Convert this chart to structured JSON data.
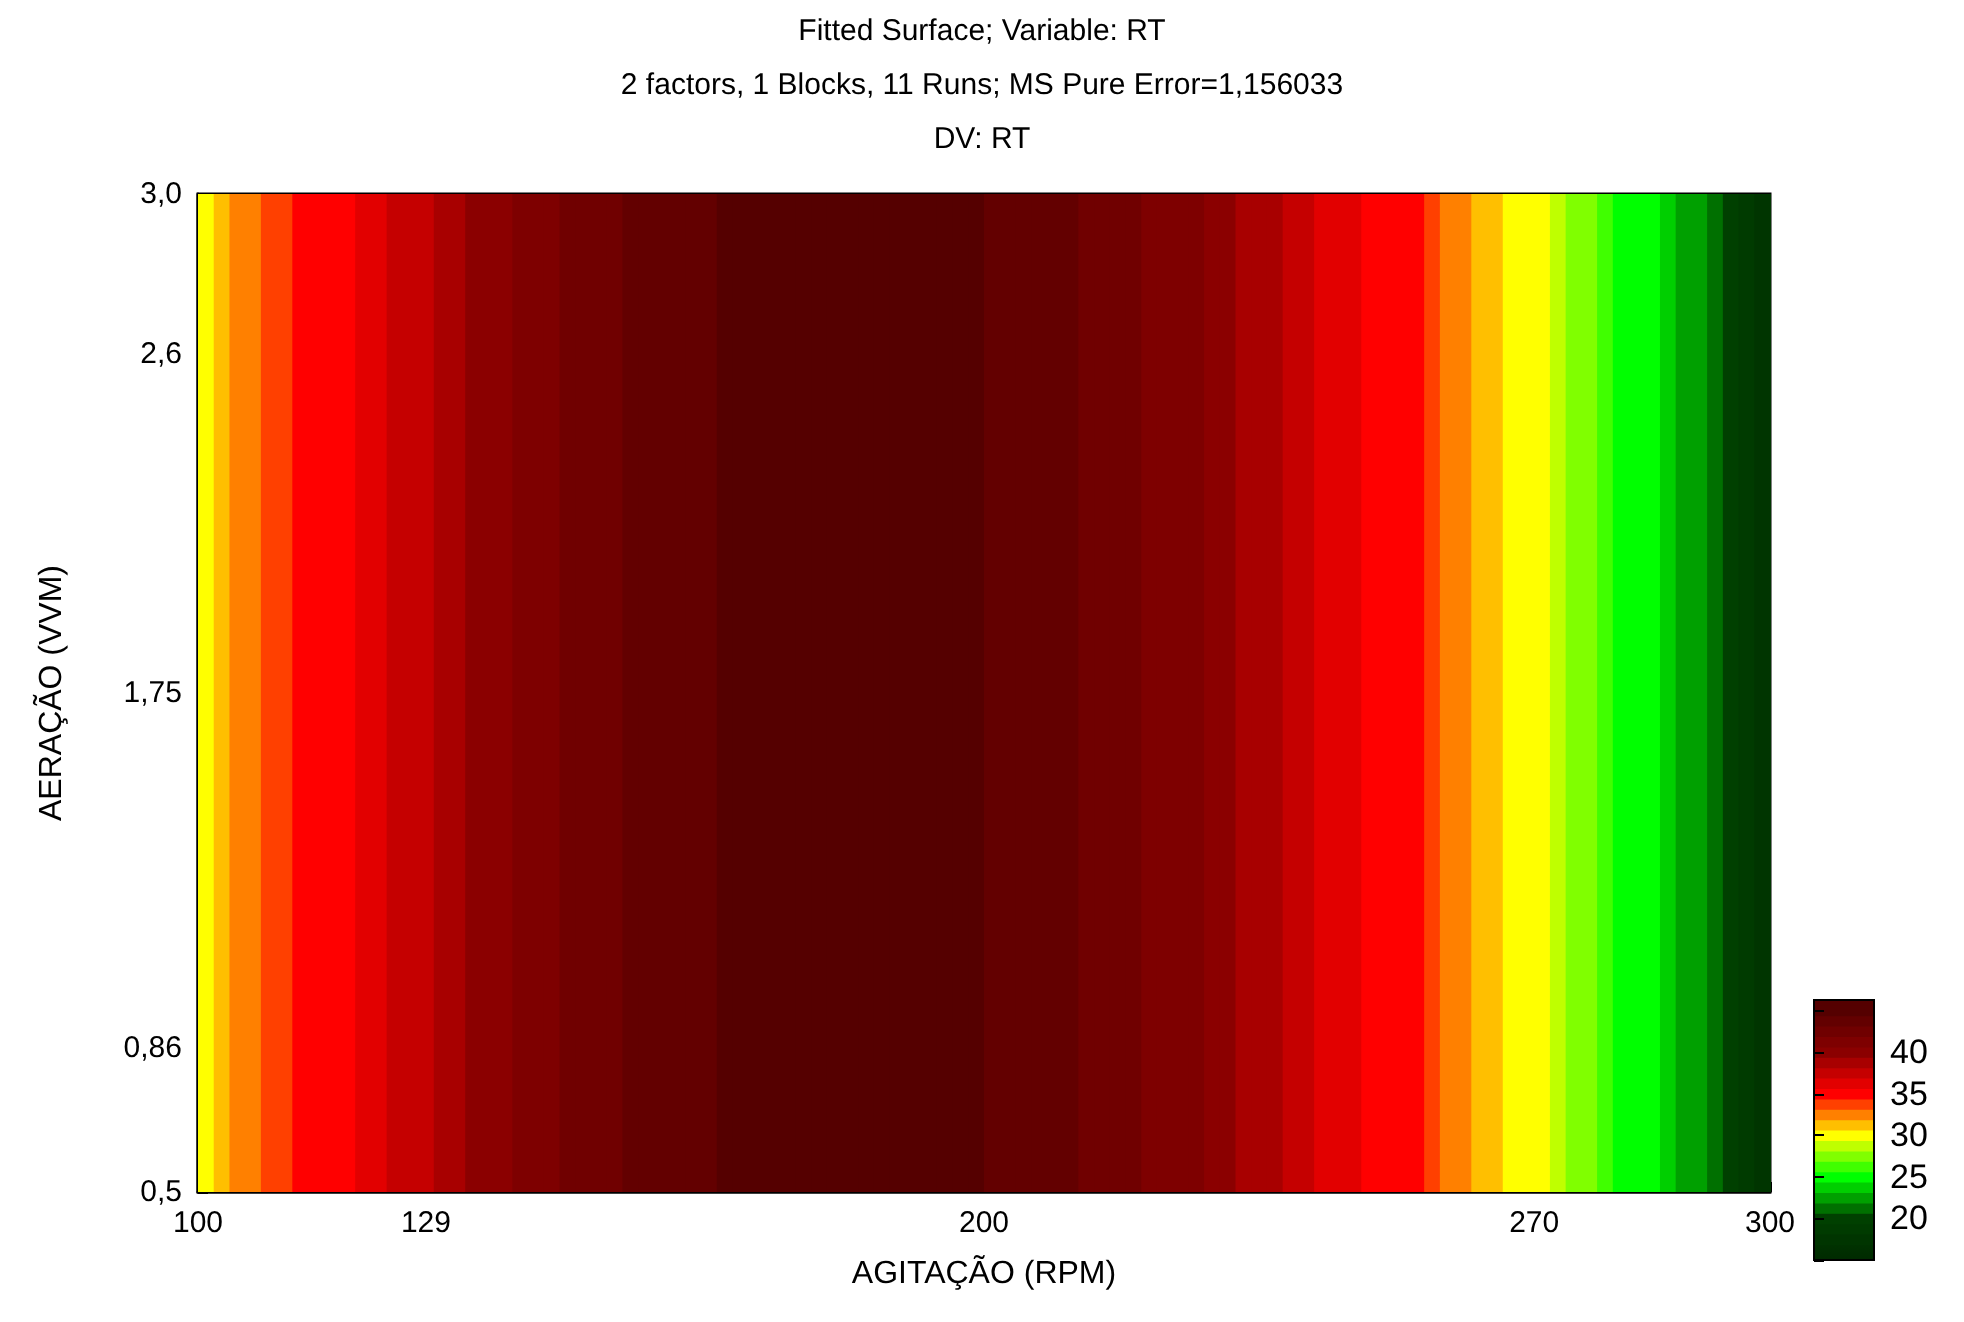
{
  "chart_data": {
    "type": "heatmap",
    "title": "Fitted Surface; Variable: RT",
    "subtitle": "2 factors, 1 Blocks, 11 Runs; MS Pure Error=1,156033",
    "annotations": [
      "DV: RT"
    ],
    "xlabel": "AGITAÇÃO (RPM)",
    "ylabel": "AERAÇÃO (VVM)",
    "cells": [
      [
        30,
        31.25,
        32.5,
        32.5,
        33.75,
        33.75,
        35,
        35,
        35,
        35,
        36.25,
        36.25,
        37.5,
        37.5,
        37.5,
        38.75,
        38.75,
        40,
        40,
        40,
        41.25,
        41.25,
        41.25,
        42.5,
        42.5,
        42.5,
        42.5,
        43.75,
        43.75,
        43.75,
        43.75,
        43.75,
        43.75,
        45,
        45,
        45,
        45,
        45,
        45,
        45,
        45,
        45,
        45,
        45,
        45,
        45,
        45,
        45,
        45,
        45,
        43.75,
        43.75,
        43.75,
        43.75,
        43.75,
        43.75,
        42.5,
        42.5,
        42.5,
        42.5,
        41.25,
        41.25,
        41.25,
        41.25,
        40,
        40,
        38.75,
        38.75,
        38.75,
        37.5,
        37.5,
        36.25,
        36.25,
        36.25,
        35,
        35,
        35,
        35,
        33.75,
        32.5,
        32.5,
        31.25,
        31.25,
        30,
        30,
        30,
        28.75,
        27.5,
        27.5,
        26.25,
        25,
        25,
        25,
        23.75,
        22.5,
        22.5,
        21.25,
        20,
        18.75,
        17.5
      ]
    ],
    "xlim": [
      100,
      300
    ],
    "xticks": [
      100,
      129,
      200,
      270,
      300
    ],
    "ylim": [
      0.5,
      3.0
    ],
    "yticks": [
      {
        "value": 0.5,
        "label": "0,5"
      },
      {
        "value": 0.86,
        "label": "0,86"
      },
      {
        "value": 1.75,
        "label": "1,75"
      },
      {
        "value": 2.6,
        "label": "2,6"
      },
      {
        "value": 3.0,
        "label": "3,0"
      }
    ],
    "clim": [
      15,
      46.25
    ],
    "cticks": [
      {
        "value": 15,
        "label": null
      },
      20,
      25,
      30,
      35,
      40,
      {
        "value": 45,
        "label": null
      }
    ],
    "colors": [
      "#002a00",
      "#004000",
      "#00ff00",
      "#ffff00",
      "#ff0000",
      "#8b0000",
      "#550000"
    ],
    "grid": false
  }
}
